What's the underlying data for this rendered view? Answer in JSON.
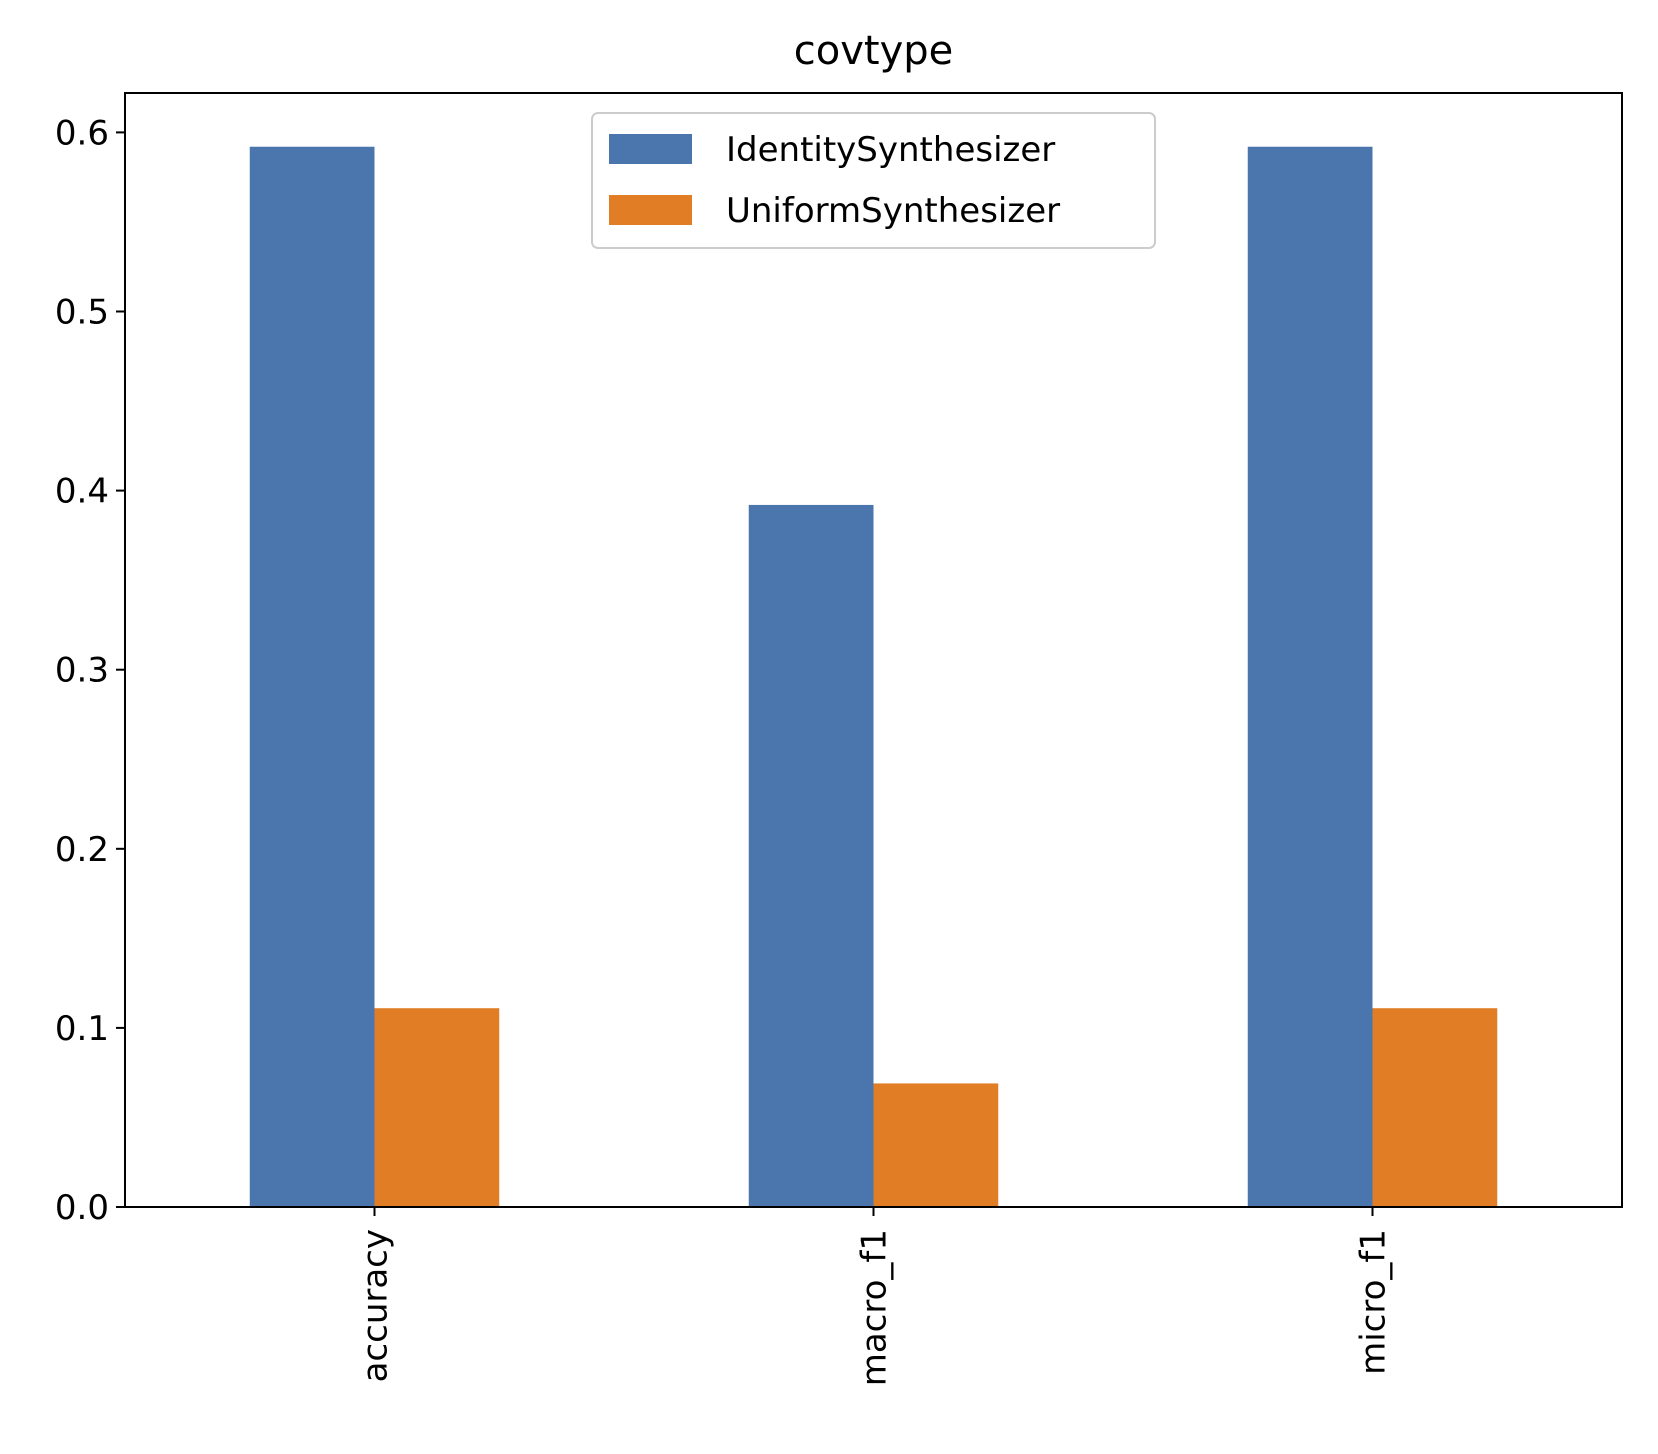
{
  "chart_data": {
    "type": "bar",
    "title": "covtype",
    "xlabel": "",
    "ylabel": "",
    "categories": [
      "accuracy",
      "macro_f1",
      "micro_f1"
    ],
    "series": [
      {
        "name": "IdentitySynthesizer",
        "color": "#4a76ad",
        "values": [
          0.592,
          0.392,
          0.592
        ]
      },
      {
        "name": "UniformSynthesizer",
        "color": "#e17e25",
        "values": [
          0.111,
          0.069,
          0.111
        ]
      }
    ],
    "ylim": [
      0,
      0.622
    ],
    "yticks": [
      "0.0",
      "0.1",
      "0.2",
      "0.3",
      "0.4",
      "0.5",
      "0.6"
    ],
    "grid": false,
    "legend_position": "upper-center",
    "x_tick_rotation": "vertical"
  }
}
